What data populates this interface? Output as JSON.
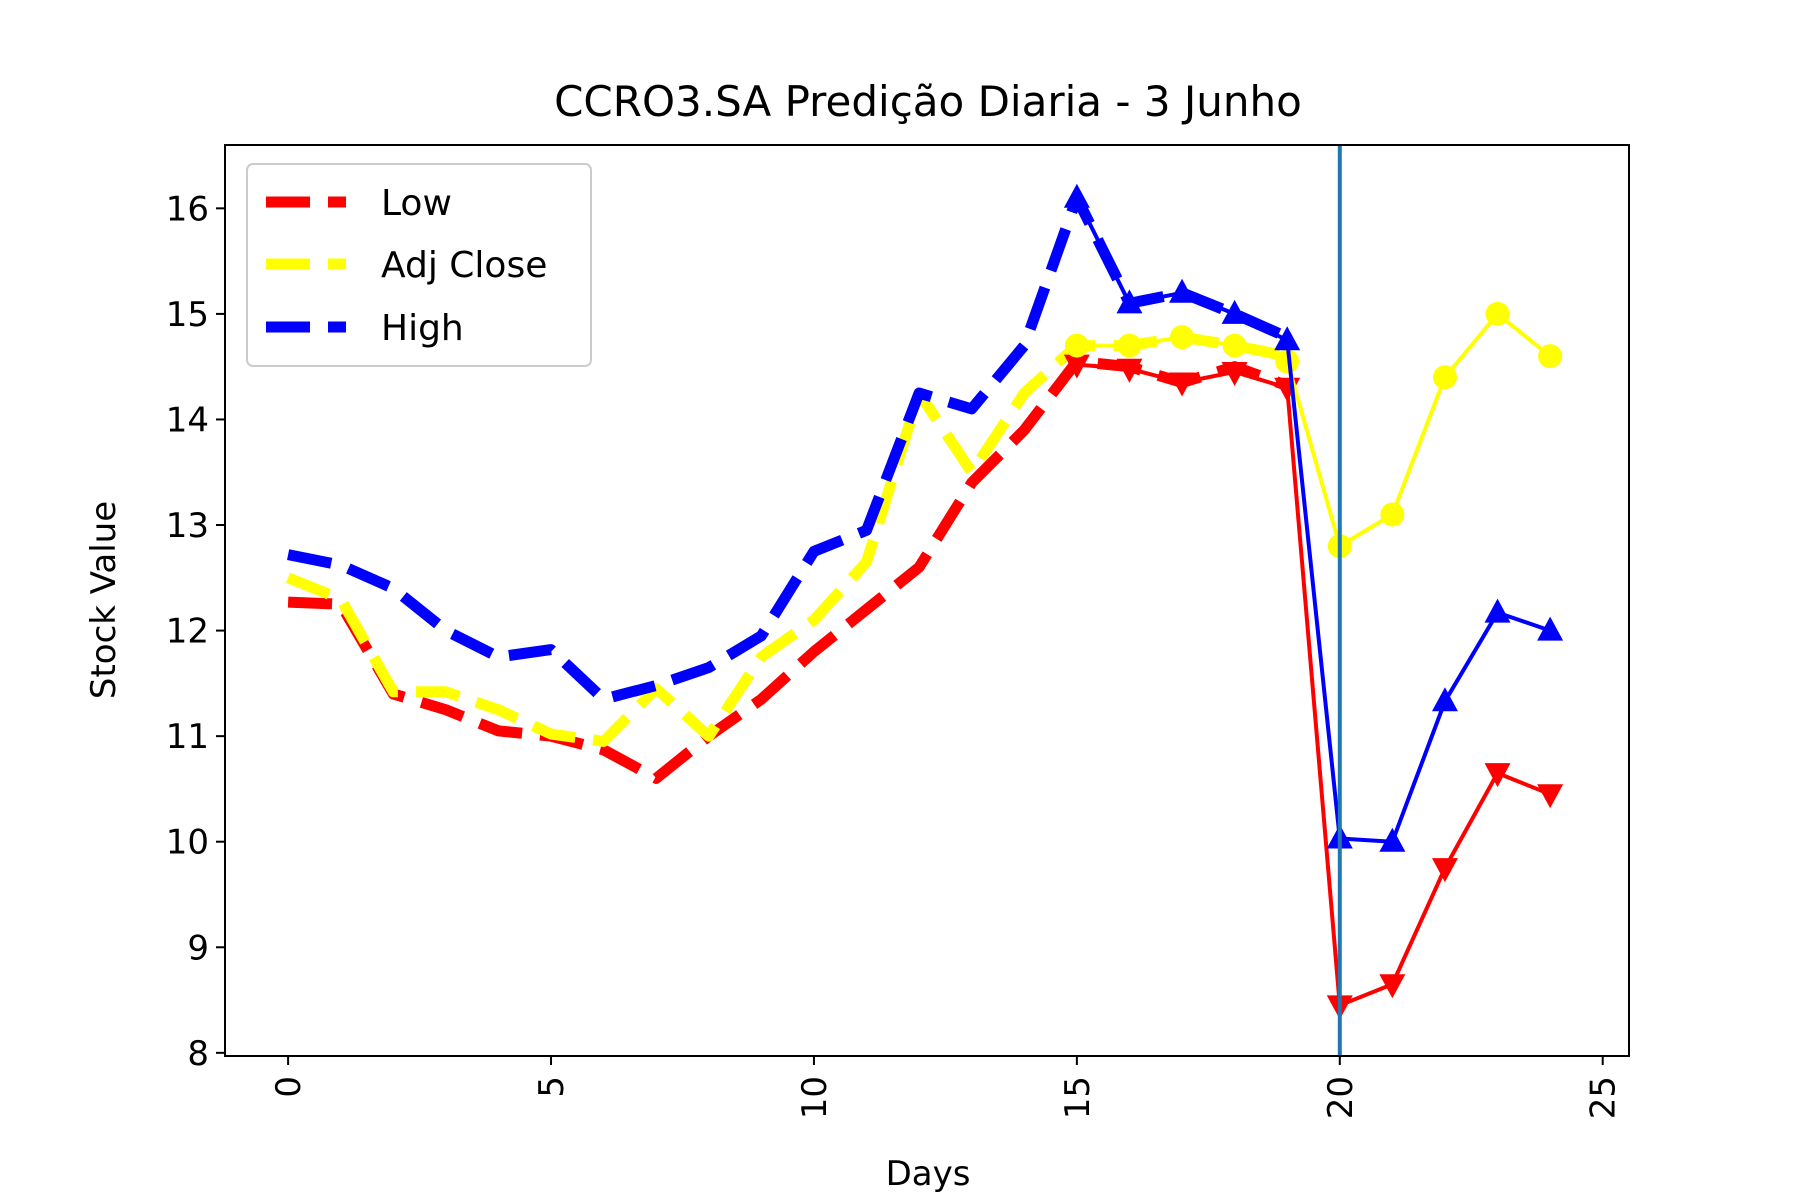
{
  "chart_data": {
    "type": "line",
    "title": "CCRO3.SA Predição Diaria - 3 Junho",
    "xlabel": "Days",
    "ylabel": "Stock Value",
    "xlim": [
      -1.2,
      25.5
    ],
    "ylim": [
      7.97,
      16.6
    ],
    "xticks": [
      "0",
      "5",
      "10",
      "15",
      "20",
      "25"
    ],
    "yticks": [
      "8",
      "9",
      "10",
      "11",
      "12",
      "13",
      "14",
      "15",
      "16"
    ],
    "grid": false,
    "legend_position": "top-left",
    "vline_x": 20,
    "vline_color": "#1f77b4",
    "series": [
      {
        "name": "Low",
        "color": "#ff0000",
        "history_x": [
          0,
          1,
          2,
          3,
          4,
          5,
          6,
          7,
          8,
          9,
          10,
          11,
          12,
          13,
          14,
          15,
          16,
          17,
          18,
          19
        ],
        "history_y": [
          12.27,
          12.25,
          11.4,
          11.25,
          11.05,
          11.0,
          10.87,
          10.6,
          11.0,
          11.35,
          11.8,
          12.2,
          12.6,
          13.4,
          13.9,
          14.55,
          14.5,
          14.35,
          14.5,
          14.32
        ],
        "pred_x": [
          15,
          16,
          17,
          18,
          19,
          20,
          21,
          22,
          23,
          24
        ],
        "pred_y": [
          14.52,
          14.48,
          14.35,
          14.45,
          14.3,
          8.45,
          8.65,
          9.75,
          10.65,
          10.45
        ],
        "marker": "triangle-down"
      },
      {
        "name": "Adj Close",
        "color": "#ffff00",
        "history_x": [
          0,
          1,
          2,
          3,
          4,
          5,
          6,
          7,
          8,
          9,
          10,
          11,
          12,
          13,
          14,
          15,
          16,
          17,
          18,
          19
        ],
        "history_y": [
          12.5,
          12.3,
          11.42,
          11.42,
          11.25,
          11.02,
          10.95,
          11.45,
          11.0,
          11.75,
          12.1,
          12.65,
          14.25,
          13.5,
          14.25,
          14.7,
          14.7,
          14.78,
          14.7,
          14.6
        ],
        "pred_x": [
          15,
          16,
          17,
          18,
          19,
          20,
          21,
          22,
          23,
          24
        ],
        "pred_y": [
          14.7,
          14.7,
          14.78,
          14.7,
          14.55,
          12.8,
          13.1,
          14.4,
          15.0,
          14.6
        ],
        "marker": "circle"
      },
      {
        "name": "High",
        "color": "#0000ff",
        "history_x": [
          0,
          1,
          2,
          3,
          4,
          5,
          6,
          7,
          8,
          9,
          10,
          11,
          12,
          13,
          14,
          15,
          16,
          17,
          18,
          19
        ],
        "history_y": [
          12.72,
          12.62,
          12.4,
          12.0,
          11.75,
          11.82,
          11.35,
          11.48,
          11.65,
          11.95,
          12.75,
          12.95,
          14.25,
          14.1,
          14.7,
          16.1,
          15.1,
          15.2,
          15.0,
          14.78
        ],
        "pred_x": [
          15,
          16,
          17,
          18,
          19,
          20,
          21,
          22,
          23,
          24
        ],
        "pred_y": [
          16.1,
          15.1,
          15.2,
          15.0,
          14.75,
          10.03,
          10.0,
          11.33,
          12.17,
          12.0
        ],
        "marker": "triangle-up"
      }
    ]
  }
}
